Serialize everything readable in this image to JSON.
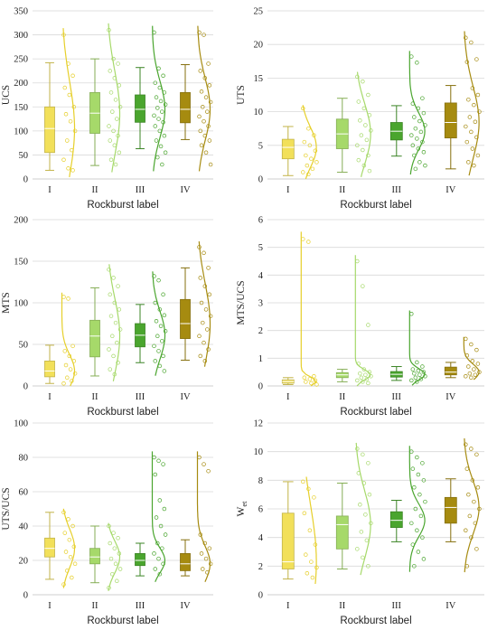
{
  "chart_data": [
    {
      "type": "box",
      "ylabel": "UCS",
      "xlabel": "Rockburst label",
      "ylim": [
        0,
        350
      ],
      "yticks": [
        0,
        50,
        100,
        150,
        200,
        250,
        300,
        350
      ],
      "categories": [
        "I",
        "II",
        "III",
        "IV"
      ],
      "colors": [
        "#f2e05a",
        "#a6d96a",
        "#4aa52e",
        "#a68b10"
      ],
      "boxes": [
        {
          "min": 18,
          "q1": 55,
          "median": 105,
          "q3": 150,
          "max": 242,
          "points": [
            300,
            240,
            215,
            190,
            175,
            150,
            135,
            120,
            100,
            80,
            60,
            40,
            22,
            18
          ]
        },
        {
          "min": 28,
          "q1": 95,
          "median": 137,
          "q3": 180,
          "max": 250,
          "points": [
            310,
            250,
            240,
            225,
            210,
            195,
            180,
            165,
            150,
            140,
            125,
            110,
            100,
            90,
            80,
            70,
            55,
            40,
            30
          ]
        },
        {
          "min": 63,
          "q1": 118,
          "median": 145,
          "q3": 175,
          "max": 232,
          "points": [
            305,
            230,
            215,
            200,
            190,
            180,
            170,
            162,
            155,
            148,
            140,
            132,
            125,
            118,
            110,
            100,
            90,
            80,
            68,
            55,
            45,
            30
          ]
        },
        {
          "min": 82,
          "q1": 117,
          "median": 145,
          "q3": 180,
          "max": 238,
          "points": [
            305,
            300,
            240,
            225,
            210,
            195,
            182,
            170,
            160,
            150,
            140,
            130,
            120,
            110,
            100,
            90,
            80,
            70,
            55,
            30
          ]
        }
      ]
    },
    {
      "type": "box",
      "ylabel": "UTS",
      "xlabel": "Rockburst label",
      "ylim": [
        0,
        25
      ],
      "yticks": [
        0,
        5,
        10,
        15,
        20,
        25
      ],
      "categories": [
        "I",
        "II",
        "III",
        "IV"
      ],
      "colors": [
        "#f2e05a",
        "#a6d96a",
        "#4aa52e",
        "#a68b10"
      ],
      "boxes": [
        {
          "min": 0.5,
          "q1": 3.0,
          "median": 4.7,
          "q3": 5.9,
          "max": 7.8,
          "points": [
            10.5,
            7.5,
            6.5,
            5.5,
            5,
            4.2,
            3.5,
            3,
            2.5,
            2,
            1.5,
            1,
            0.7
          ]
        },
        {
          "min": 1.0,
          "q1": 4.5,
          "median": 6.7,
          "q3": 8.9,
          "max": 12.0,
          "points": [
            15.2,
            14.5,
            12.5,
            11.5,
            10.5,
            9.5,
            8.7,
            8,
            7.2,
            6.5,
            5.8,
            5,
            4.3,
            3.5,
            2.8,
            2,
            1.2
          ]
        },
        {
          "min": 3.4,
          "q1": 5.8,
          "median": 7.1,
          "q3": 8.4,
          "max": 10.9,
          "points": [
            18.2,
            17.3,
            12,
            11.2,
            10.5,
            9.8,
            9.2,
            8.6,
            8,
            7.5,
            7,
            6.5,
            6,
            5.5,
            5,
            4.5,
            4,
            3.5,
            2.5,
            2,
            1.5
          ]
        },
        {
          "min": 1.5,
          "q1": 6.1,
          "median": 8.4,
          "q3": 11.3,
          "max": 13.9,
          "points": [
            21,
            20.3,
            17.8,
            17.4,
            13.5,
            12.5,
            11.8,
            11,
            10,
            9.2,
            8.5,
            7.8,
            7,
            6.2,
            5.5,
            4.5,
            3.5,
            2.5,
            2
          ]
        }
      ]
    },
    {
      "type": "box",
      "ylabel": "MTS",
      "xlabel": "Rockburst label",
      "ylim": [
        0,
        200
      ],
      "yticks": [
        0,
        50,
        100,
        150,
        200
      ],
      "categories": [
        "I",
        "II",
        "III",
        "IV"
      ],
      "colors": [
        "#f2e05a",
        "#a6d96a",
        "#4aa52e",
        "#a68b10"
      ],
      "boxes": [
        {
          "min": 3,
          "q1": 11,
          "median": 18,
          "q3": 30,
          "max": 49,
          "points": [
            107,
            105,
            48,
            42,
            36,
            30,
            25,
            20,
            15,
            10,
            6,
            3
          ]
        },
        {
          "min": 12,
          "q1": 35,
          "median": 60,
          "q3": 79,
          "max": 118,
          "points": [
            140,
            130,
            120,
            110,
            100,
            92,
            84,
            76,
            68,
            60,
            52,
            44,
            36,
            28,
            20,
            14
          ]
        },
        {
          "min": 28,
          "q1": 47,
          "median": 61,
          "q3": 75,
          "max": 98,
          "points": [
            132,
            127,
            110,
            100,
            92,
            85,
            78,
            72,
            66,
            60,
            54,
            48,
            42,
            36,
            30,
            24,
            18
          ]
        },
        {
          "min": 31,
          "q1": 57,
          "median": 75,
          "q3": 104,
          "max": 142,
          "points": [
            167,
            160,
            142,
            130,
            120,
            110,
            100,
            92,
            84,
            76,
            68,
            60,
            52,
            44,
            36,
            30
          ]
        }
      ]
    },
    {
      "type": "box",
      "ylabel": "MTS/UCS",
      "xlabel": "Rockburst label",
      "ylim": [
        0,
        6
      ],
      "yticks": [
        0,
        1,
        2,
        3,
        4,
        5,
        6
      ],
      "categories": [
        "I",
        "II",
        "III",
        "IV"
      ],
      "colors": [
        "#f2e05a",
        "#a6d96a",
        "#4aa52e",
        "#a68b10"
      ],
      "boxes": [
        {
          "min": 0.05,
          "q1": 0.1,
          "median": 0.16,
          "q3": 0.22,
          "max": 0.3,
          "points": [
            5.3,
            5.2,
            0.35,
            0.3,
            0.25,
            0.2,
            0.15,
            0.1,
            0.05
          ]
        },
        {
          "min": 0.15,
          "q1": 0.3,
          "median": 0.4,
          "q3": 0.48,
          "max": 0.6,
          "points": [
            4.5,
            3.6,
            2.2,
            0.8,
            0.6,
            0.5,
            0.45,
            0.4,
            0.35,
            0.3,
            0.25,
            0.2,
            0.15,
            0.1
          ]
        },
        {
          "min": 0.2,
          "q1": 0.32,
          "median": 0.42,
          "q3": 0.52,
          "max": 0.7,
          "points": [
            2.6,
            0.85,
            0.7,
            0.6,
            0.55,
            0.5,
            0.45,
            0.4,
            0.35,
            0.3,
            0.25,
            0.2,
            0.15
          ]
        },
        {
          "min": 0.3,
          "q1": 0.4,
          "median": 0.5,
          "q3": 0.68,
          "max": 0.85,
          "points": [
            1.7,
            1.5,
            1.3,
            1.1,
            0.9,
            0.8,
            0.7,
            0.6,
            0.5,
            0.45,
            0.4,
            0.35,
            0.3
          ]
        }
      ]
    },
    {
      "type": "box",
      "ylabel": "UTS/UCS",
      "xlabel": "Rockburst label",
      "ylim": [
        0,
        100
      ],
      "yticks": [
        0,
        20,
        40,
        60,
        80,
        100
      ],
      "categories": [
        "I",
        "II",
        "III",
        "IV"
      ],
      "colors": [
        "#f2e05a",
        "#a6d96a",
        "#4aa52e",
        "#a68b10"
      ],
      "boxes": [
        {
          "min": 9,
          "q1": 22,
          "median": 27,
          "q3": 33,
          "max": 48,
          "points": [
            48,
            44,
            40,
            36,
            32,
            28,
            25,
            22,
            18,
            14,
            10,
            6
          ]
        },
        {
          "min": 7,
          "q1": 18,
          "median": 22,
          "q3": 27,
          "max": 40,
          "points": [
            40,
            36,
            33,
            30,
            27,
            24,
            21,
            18,
            15,
            12,
            8,
            4
          ]
        },
        {
          "min": 11,
          "q1": 17,
          "median": 20,
          "q3": 24,
          "max": 30,
          "points": [
            80,
            78,
            76,
            70,
            55,
            50,
            45,
            40,
            35,
            30,
            27,
            24,
            21,
            18,
            15,
            12
          ]
        },
        {
          "min": 11,
          "q1": 14,
          "median": 18,
          "q3": 24,
          "max": 32,
          "points": [
            80,
            76,
            72,
            35,
            30,
            27,
            24,
            21,
            18,
            15,
            13
          ]
        }
      ]
    },
    {
      "type": "box",
      "ylabel": "Wet",
      "xlabel": "Rockburst label",
      "ylim": [
        0,
        12
      ],
      "yticks": [
        0,
        2,
        4,
        6,
        8,
        10,
        12
      ],
      "categories": [
        "I",
        "II",
        "III",
        "IV"
      ],
      "colors": [
        "#f2e05a",
        "#a6d96a",
        "#4aa52e",
        "#a68b10"
      ],
      "boxes": [
        {
          "min": 1.1,
          "q1": 1.8,
          "median": 2.3,
          "q3": 5.7,
          "max": 7.9,
          "points": [
            7.9,
            7.4,
            6.8,
            5.7,
            4.5,
            3.5,
            2.8,
            2.3,
            1.9,
            1.5,
            1.2
          ]
        },
        {
          "min": 1.8,
          "q1": 3.2,
          "median": 4.9,
          "q3": 5.5,
          "max": 7.8,
          "points": [
            10.2,
            9.8,
            9.2,
            8.5,
            7.8,
            7,
            6.3,
            5.6,
            5,
            4.4,
            3.8,
            3.2,
            2.6,
            2
          ]
        },
        {
          "min": 3.7,
          "q1": 4.7,
          "median": 5.2,
          "q3": 5.8,
          "max": 6.6,
          "points": [
            10,
            9.6,
            9.2,
            8.8,
            8.4,
            8,
            7.5,
            7,
            6.5,
            6,
            5.5,
            5,
            4.5,
            4,
            3.5,
            3,
            2.5,
            2
          ]
        },
        {
          "min": 3.7,
          "q1": 5.0,
          "median": 6.1,
          "q3": 6.8,
          "max": 8.1,
          "points": [
            10.5,
            10.2,
            9.8,
            8.8,
            8,
            7.5,
            7,
            6.5,
            6,
            5.5,
            5,
            4.5,
            4,
            3.2,
            2
          ]
        }
      ]
    }
  ]
}
